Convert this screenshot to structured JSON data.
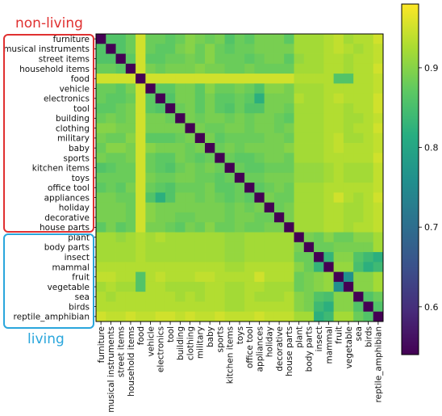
{
  "chart_data": {
    "type": "heatmap",
    "labels": [
      "furniture",
      "musical instruments",
      "street items",
      "household items",
      "food",
      "vehicle",
      "electronics",
      "tool",
      "building",
      "clothing",
      "military",
      "baby",
      "sports",
      "kitchen items",
      "toys",
      "office tool",
      "appliances",
      "holiday",
      "decorative",
      "house parts",
      "plant",
      "body parts",
      "insect",
      "mammal",
      "fruit",
      "vegetable",
      "sea",
      "birds",
      "reptile_amphibian"
    ],
    "colorbar": {
      "min": 0.54,
      "max": 0.98,
      "ticks": [
        0.6,
        0.7,
        0.8,
        0.9
      ],
      "colormap": "viridis"
    },
    "groups": [
      {
        "label": "non-living",
        "from": "furniture",
        "to": "house parts",
        "color": "#e03030"
      },
      {
        "label": "living",
        "from": "plant",
        "to": "reptile_amphibian",
        "color": "#2aa6dc"
      }
    ],
    "values": [
      [
        0.54,
        0.86,
        0.86,
        0.88,
        0.95,
        0.88,
        0.88,
        0.87,
        0.88,
        0.9,
        0.89,
        0.88,
        0.89,
        0.86,
        0.88,
        0.87,
        0.89,
        0.89,
        0.89,
        0.87,
        0.92,
        0.92,
        0.92,
        0.93,
        0.94,
        0.92,
        0.93,
        0.93,
        0.95
      ],
      [
        0.86,
        0.54,
        0.86,
        0.88,
        0.95,
        0.88,
        0.87,
        0.87,
        0.89,
        0.9,
        0.88,
        0.9,
        0.88,
        0.87,
        0.88,
        0.88,
        0.89,
        0.89,
        0.89,
        0.89,
        0.92,
        0.92,
        0.92,
        0.93,
        0.94,
        0.93,
        0.92,
        0.93,
        0.94
      ],
      [
        0.86,
        0.86,
        0.54,
        0.87,
        0.95,
        0.87,
        0.87,
        0.88,
        0.88,
        0.89,
        0.88,
        0.9,
        0.88,
        0.88,
        0.88,
        0.87,
        0.88,
        0.89,
        0.89,
        0.87,
        0.91,
        0.92,
        0.92,
        0.93,
        0.93,
        0.92,
        0.93,
        0.93,
        0.94
      ],
      [
        0.88,
        0.88,
        0.87,
        0.54,
        0.95,
        0.89,
        0.88,
        0.89,
        0.89,
        0.89,
        0.9,
        0.89,
        0.89,
        0.88,
        0.88,
        0.89,
        0.88,
        0.88,
        0.88,
        0.88,
        0.92,
        0.92,
        0.92,
        0.93,
        0.93,
        0.92,
        0.93,
        0.93,
        0.95
      ],
      [
        0.95,
        0.95,
        0.95,
        0.95,
        0.54,
        0.95,
        0.95,
        0.95,
        0.95,
        0.95,
        0.95,
        0.95,
        0.95,
        0.95,
        0.95,
        0.95,
        0.95,
        0.95,
        0.95,
        0.95,
        0.93,
        0.93,
        0.93,
        0.93,
        0.86,
        0.86,
        0.93,
        0.93,
        0.94
      ],
      [
        0.88,
        0.88,
        0.87,
        0.89,
        0.95,
        0.54,
        0.87,
        0.87,
        0.89,
        0.89,
        0.87,
        0.9,
        0.88,
        0.88,
        0.89,
        0.88,
        0.86,
        0.9,
        0.9,
        0.89,
        0.92,
        0.92,
        0.92,
        0.93,
        0.93,
        0.93,
        0.93,
        0.93,
        0.94
      ],
      [
        0.88,
        0.87,
        0.87,
        0.88,
        0.95,
        0.87,
        0.54,
        0.86,
        0.89,
        0.89,
        0.87,
        0.89,
        0.87,
        0.87,
        0.88,
        0.87,
        0.82,
        0.89,
        0.89,
        0.89,
        0.93,
        0.92,
        0.92,
        0.93,
        0.94,
        0.93,
        0.93,
        0.93,
        0.95
      ],
      [
        0.87,
        0.87,
        0.88,
        0.89,
        0.95,
        0.87,
        0.86,
        0.54,
        0.88,
        0.89,
        0.87,
        0.89,
        0.87,
        0.86,
        0.88,
        0.86,
        0.86,
        0.89,
        0.89,
        0.88,
        0.92,
        0.92,
        0.92,
        0.93,
        0.93,
        0.92,
        0.93,
        0.93,
        0.95
      ],
      [
        0.88,
        0.89,
        0.88,
        0.89,
        0.95,
        0.89,
        0.89,
        0.88,
        0.54,
        0.89,
        0.88,
        0.89,
        0.89,
        0.88,
        0.89,
        0.88,
        0.89,
        0.89,
        0.88,
        0.87,
        0.92,
        0.92,
        0.92,
        0.93,
        0.93,
        0.92,
        0.92,
        0.93,
        0.94
      ],
      [
        0.9,
        0.9,
        0.89,
        0.89,
        0.95,
        0.89,
        0.89,
        0.89,
        0.89,
        0.54,
        0.89,
        0.88,
        0.88,
        0.89,
        0.89,
        0.88,
        0.89,
        0.89,
        0.88,
        0.89,
        0.92,
        0.92,
        0.92,
        0.93,
        0.93,
        0.92,
        0.93,
        0.93,
        0.95
      ],
      [
        0.89,
        0.88,
        0.88,
        0.9,
        0.95,
        0.87,
        0.87,
        0.87,
        0.88,
        0.89,
        0.54,
        0.89,
        0.87,
        0.88,
        0.88,
        0.88,
        0.88,
        0.89,
        0.89,
        0.88,
        0.92,
        0.92,
        0.92,
        0.93,
        0.94,
        0.92,
        0.92,
        0.93,
        0.94
      ],
      [
        0.88,
        0.9,
        0.9,
        0.89,
        0.95,
        0.9,
        0.89,
        0.89,
        0.89,
        0.88,
        0.89,
        0.54,
        0.88,
        0.89,
        0.88,
        0.89,
        0.89,
        0.89,
        0.89,
        0.9,
        0.92,
        0.92,
        0.92,
        0.93,
        0.94,
        0.93,
        0.93,
        0.93,
        0.94
      ],
      [
        0.89,
        0.88,
        0.88,
        0.89,
        0.95,
        0.88,
        0.87,
        0.87,
        0.89,
        0.88,
        0.87,
        0.88,
        0.54,
        0.88,
        0.87,
        0.87,
        0.88,
        0.89,
        0.89,
        0.88,
        0.92,
        0.92,
        0.92,
        0.93,
        0.93,
        0.93,
        0.93,
        0.93,
        0.95
      ],
      [
        0.86,
        0.87,
        0.88,
        0.88,
        0.95,
        0.88,
        0.87,
        0.86,
        0.88,
        0.89,
        0.88,
        0.89,
        0.88,
        0.54,
        0.88,
        0.87,
        0.87,
        0.88,
        0.88,
        0.88,
        0.91,
        0.91,
        0.91,
        0.92,
        0.93,
        0.92,
        0.92,
        0.92,
        0.94
      ],
      [
        0.88,
        0.88,
        0.88,
        0.88,
        0.95,
        0.89,
        0.88,
        0.88,
        0.89,
        0.89,
        0.88,
        0.88,
        0.87,
        0.88,
        0.54,
        0.88,
        0.88,
        0.89,
        0.89,
        0.89,
        0.91,
        0.91,
        0.91,
        0.92,
        0.93,
        0.92,
        0.92,
        0.92,
        0.94
      ],
      [
        0.87,
        0.88,
        0.87,
        0.89,
        0.95,
        0.88,
        0.87,
        0.86,
        0.88,
        0.88,
        0.88,
        0.89,
        0.87,
        0.87,
        0.88,
        0.54,
        0.87,
        0.88,
        0.89,
        0.88,
        0.92,
        0.92,
        0.92,
        0.93,
        0.93,
        0.93,
        0.93,
        0.93,
        0.94
      ],
      [
        0.89,
        0.89,
        0.88,
        0.88,
        0.95,
        0.86,
        0.82,
        0.86,
        0.89,
        0.89,
        0.88,
        0.89,
        0.88,
        0.87,
        0.88,
        0.87,
        0.54,
        0.89,
        0.88,
        0.88,
        0.92,
        0.92,
        0.92,
        0.93,
        0.95,
        0.93,
        0.92,
        0.93,
        0.95
      ],
      [
        0.89,
        0.89,
        0.89,
        0.88,
        0.95,
        0.9,
        0.89,
        0.89,
        0.89,
        0.89,
        0.89,
        0.89,
        0.89,
        0.88,
        0.89,
        0.88,
        0.89,
        0.54,
        0.88,
        0.89,
        0.92,
        0.92,
        0.92,
        0.93,
        0.93,
        0.92,
        0.92,
        0.93,
        0.94
      ],
      [
        0.89,
        0.89,
        0.89,
        0.88,
        0.95,
        0.9,
        0.89,
        0.89,
        0.88,
        0.88,
        0.89,
        0.89,
        0.89,
        0.88,
        0.89,
        0.89,
        0.88,
        0.88,
        0.54,
        0.89,
        0.92,
        0.92,
        0.92,
        0.93,
        0.93,
        0.92,
        0.92,
        0.93,
        0.94
      ],
      [
        0.87,
        0.89,
        0.87,
        0.88,
        0.95,
        0.89,
        0.89,
        0.88,
        0.87,
        0.89,
        0.88,
        0.9,
        0.88,
        0.88,
        0.89,
        0.88,
        0.88,
        0.89,
        0.89,
        0.54,
        0.92,
        0.92,
        0.92,
        0.93,
        0.93,
        0.92,
        0.93,
        0.93,
        0.94
      ],
      [
        0.92,
        0.92,
        0.91,
        0.92,
        0.93,
        0.92,
        0.93,
        0.92,
        0.92,
        0.92,
        0.92,
        0.92,
        0.92,
        0.91,
        0.91,
        0.92,
        0.92,
        0.92,
        0.92,
        0.92,
        0.54,
        0.89,
        0.88,
        0.9,
        0.88,
        0.88,
        0.9,
        0.9,
        0.92
      ],
      [
        0.92,
        0.92,
        0.92,
        0.92,
        0.93,
        0.92,
        0.92,
        0.92,
        0.92,
        0.92,
        0.92,
        0.92,
        0.92,
        0.91,
        0.91,
        0.92,
        0.92,
        0.92,
        0.92,
        0.92,
        0.89,
        0.54,
        0.88,
        0.88,
        0.89,
        0.89,
        0.89,
        0.89,
        0.92
      ],
      [
        0.92,
        0.92,
        0.92,
        0.92,
        0.93,
        0.92,
        0.92,
        0.92,
        0.92,
        0.92,
        0.92,
        0.92,
        0.92,
        0.91,
        0.91,
        0.92,
        0.92,
        0.92,
        0.92,
        0.92,
        0.88,
        0.88,
        0.54,
        0.83,
        0.9,
        0.9,
        0.86,
        0.84,
        0.82
      ],
      [
        0.93,
        0.93,
        0.93,
        0.93,
        0.93,
        0.93,
        0.93,
        0.93,
        0.93,
        0.93,
        0.93,
        0.93,
        0.93,
        0.92,
        0.92,
        0.93,
        0.93,
        0.93,
        0.93,
        0.93,
        0.9,
        0.88,
        0.83,
        0.54,
        0.91,
        0.91,
        0.85,
        0.82,
        0.84
      ],
      [
        0.94,
        0.94,
        0.93,
        0.93,
        0.86,
        0.93,
        0.94,
        0.93,
        0.93,
        0.93,
        0.94,
        0.94,
        0.93,
        0.93,
        0.93,
        0.93,
        0.95,
        0.93,
        0.93,
        0.93,
        0.88,
        0.89,
        0.9,
        0.91,
        0.54,
        0.76,
        0.9,
        0.9,
        0.92
      ],
      [
        0.92,
        0.93,
        0.92,
        0.92,
        0.86,
        0.93,
        0.93,
        0.92,
        0.92,
        0.92,
        0.92,
        0.93,
        0.93,
        0.92,
        0.92,
        0.93,
        0.93,
        0.92,
        0.92,
        0.92,
        0.88,
        0.89,
        0.9,
        0.91,
        0.76,
        0.54,
        0.9,
        0.9,
        0.92
      ],
      [
        0.93,
        0.92,
        0.93,
        0.93,
        0.93,
        0.93,
        0.93,
        0.93,
        0.92,
        0.93,
        0.92,
        0.93,
        0.93,
        0.92,
        0.92,
        0.93,
        0.92,
        0.92,
        0.92,
        0.93,
        0.9,
        0.89,
        0.86,
        0.85,
        0.9,
        0.9,
        0.54,
        0.86,
        0.88
      ],
      [
        0.93,
        0.93,
        0.93,
        0.93,
        0.93,
        0.93,
        0.93,
        0.93,
        0.93,
        0.93,
        0.93,
        0.93,
        0.93,
        0.92,
        0.92,
        0.93,
        0.93,
        0.93,
        0.93,
        0.93,
        0.9,
        0.89,
        0.84,
        0.82,
        0.9,
        0.9,
        0.86,
        0.54,
        0.86
      ],
      [
        0.95,
        0.94,
        0.94,
        0.95,
        0.94,
        0.94,
        0.95,
        0.95,
        0.94,
        0.95,
        0.94,
        0.94,
        0.95,
        0.94,
        0.94,
        0.94,
        0.95,
        0.94,
        0.94,
        0.94,
        0.92,
        0.92,
        0.82,
        0.84,
        0.92,
        0.92,
        0.88,
        0.86,
        0.54
      ]
    ]
  }
}
